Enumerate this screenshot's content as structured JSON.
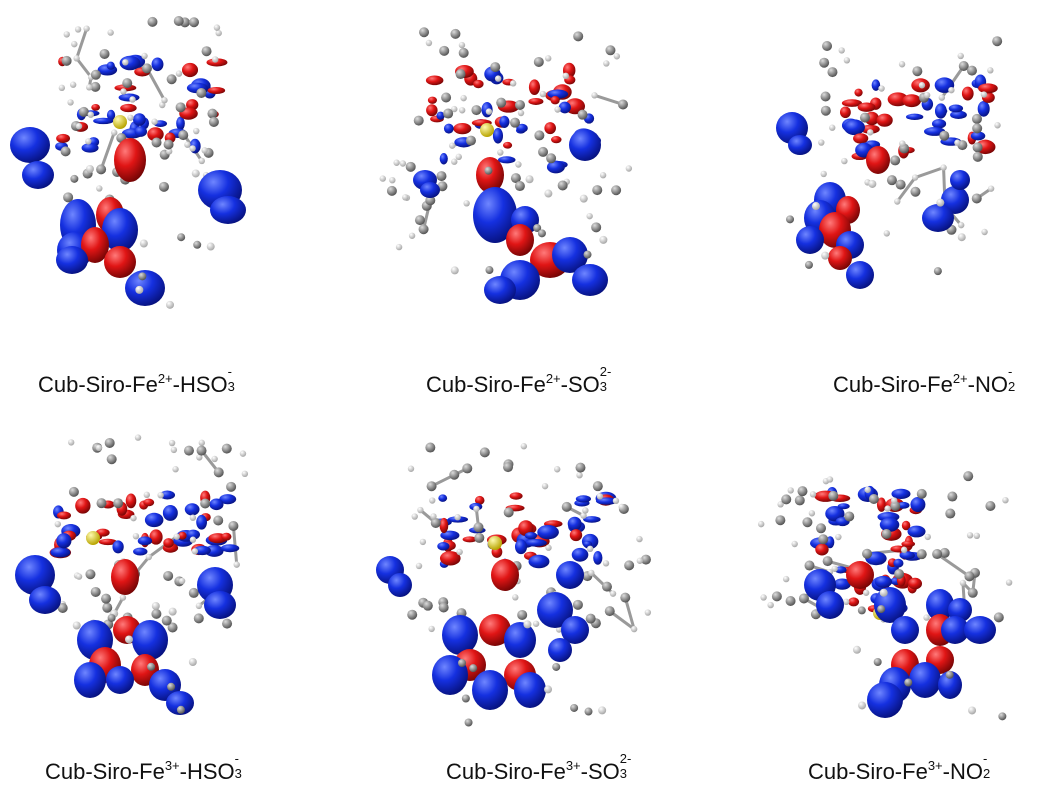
{
  "figure": {
    "colors": {
      "blue_lobe": "#1530e0",
      "red_lobe": "#e01515",
      "carbon": "#8a8a8a",
      "hydrogen": "#f2f2f2",
      "sulfur": "#f2e030",
      "nitrogen": "#3030c0",
      "bond": "#9a9a9a"
    },
    "panels": [
      {
        "id": "p1",
        "caption": {
          "pre": "Cub-Siro-Fe",
          "sup1": "2+",
          "mid": "-HSO",
          "sub": "3",
          "sup2": "-"
        }
      },
      {
        "id": "p2",
        "caption": {
          "pre": "Cub-Siro-Fe",
          "sup1": "2+",
          "mid": "-SO",
          "sub": "3",
          "sup2": "2-"
        }
      },
      {
        "id": "p3",
        "caption": {
          "pre": "Cub-Siro-Fe",
          "sup1": "2+",
          "mid": "-NO",
          "sub": "2",
          "sup2": "-"
        }
      },
      {
        "id": "p4",
        "caption": {
          "pre": "Cub-Siro-Fe",
          "sup1": "3+",
          "mid": "-HSO",
          "sub": "3",
          "sup2": "-"
        }
      },
      {
        "id": "p5",
        "caption": {
          "pre": "Cub-Siro-Fe",
          "sup1": "3+",
          "mid": "-SO",
          "sub": "3",
          "sup2": "2-"
        }
      },
      {
        "id": "p6",
        "caption": {
          "pre": "Cub-Siro-Fe",
          "sup1": "3+",
          "mid": "-NO",
          "sub": "2",
          "sup2": "-"
        }
      }
    ]
  }
}
